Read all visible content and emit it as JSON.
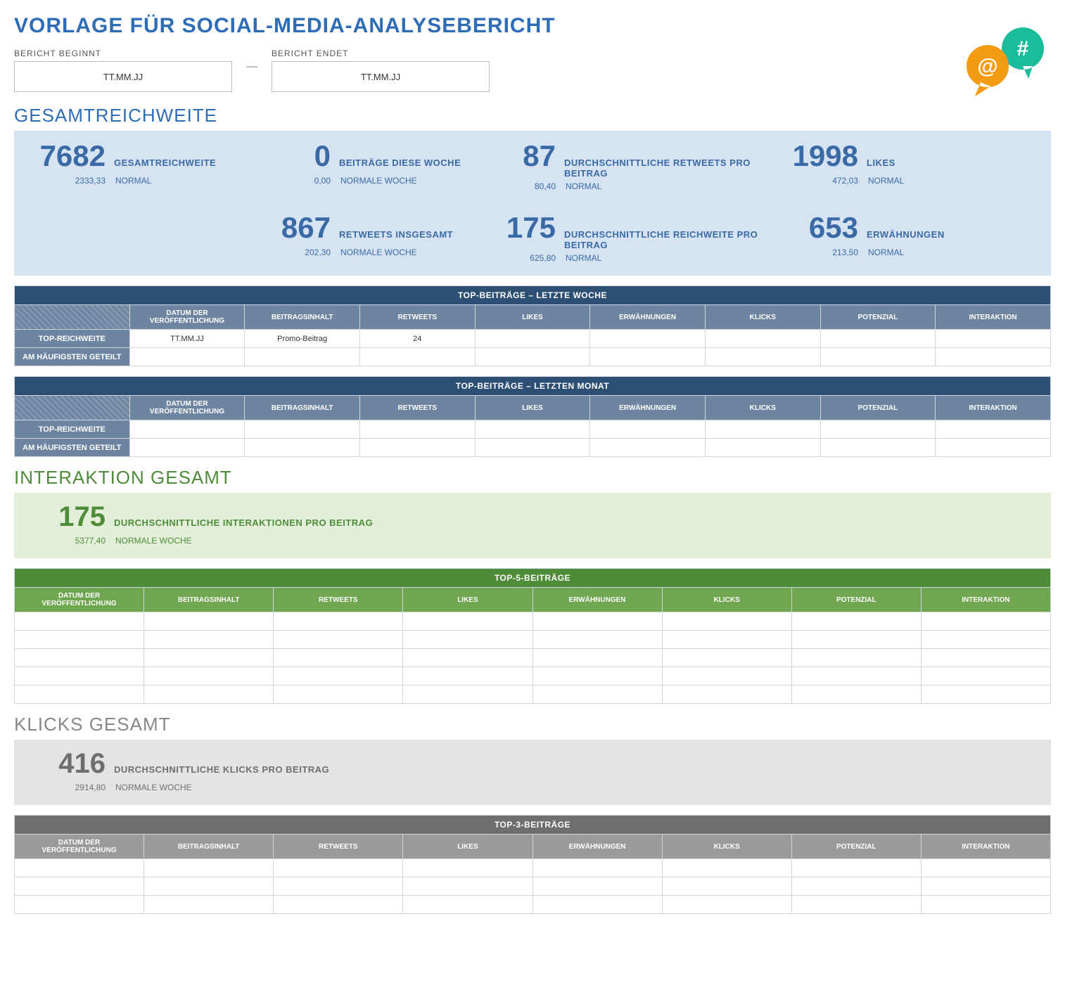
{
  "title": "VORLAGE FÜR SOCIAL-MEDIA-ANALYSEBERICHT",
  "dates": {
    "start_label": "BERICHT BEGINNT",
    "end_label": "BERICHT ENDET",
    "start_value": "TT.MM.JJ",
    "end_value": "TT.MM.JJ",
    "dash": "—"
  },
  "icons": {
    "at_color": "#f39c12",
    "hash_color": "#1abc9c",
    "at_glyph": "@",
    "hash_glyph": "#"
  },
  "reach_section": {
    "heading": "GESAMTREICHWEITE",
    "panel_bg": "#d6e3f2",
    "text_color": "#3a6aa6",
    "stats": [
      {
        "value": "7682",
        "label": "GESAMTREICHWEITE",
        "small": "2333,33",
        "status": "NORMAL"
      },
      {
        "value": "0",
        "label": "BEITRÄGE DIESE WOCHE",
        "small": "0,00",
        "status": "NORMALE WOCHE"
      },
      {
        "value": "87",
        "label": "DURCHSCHNITTLICHE RETWEETS PRO BEITRAG",
        "small": "80,40",
        "status": "NORMAL"
      },
      {
        "value": "1998",
        "label": "LIKES",
        "small": "472,03",
        "status": "NORMAL"
      },
      {
        "value": "",
        "label": "",
        "small": "",
        "status": ""
      },
      {
        "value": "867",
        "label": "RETWEETS INSGESAMT",
        "small": "202,30",
        "status": "NORMALE WOCHE"
      },
      {
        "value": "175",
        "label": "DURCHSCHNITTLICHE REICHWEITE PRO BEITRAG",
        "small": "625,80",
        "status": "NORMAL"
      },
      {
        "value": "653",
        "label": "ERWÄHNUNGEN",
        "small": "213,50",
        "status": "NORMAL"
      }
    ]
  },
  "top_week": {
    "title": "TOP-BEITRÄGE – LETZTE WOCHE",
    "headers": [
      "",
      "DATUM DER VERÖFFENTLICHUNG",
      "BEITRAGSINHALT",
      "RETWEETS",
      "LIKES",
      "ERWÄHNUNGEN",
      "KLICKS",
      "POTENZIAL",
      "INTERAKTION"
    ],
    "rows": [
      {
        "label": "TOP-REICHWEITE",
        "cells": [
          "TT.MM.JJ",
          "Promo-Beitrag",
          "24",
          "",
          "",
          "",
          "",
          ""
        ]
      },
      {
        "label": "AM HÄUFIGSTEN GETEILT",
        "cells": [
          "",
          "",
          "",
          "",
          "",
          "",
          "",
          ""
        ]
      }
    ]
  },
  "top_month": {
    "title": "TOP-BEITRÄGE – LETZTEN MONAT",
    "headers": [
      "",
      "DATUM DER VERÖFFENTLICHUNG",
      "BEITRAGSINHALT",
      "RETWEETS",
      "LIKES",
      "ERWÄHNUNGEN",
      "KLICKS",
      "POTENZIAL",
      "INTERAKTION"
    ],
    "rows": [
      {
        "label": "TOP-REICHWEITE",
        "cells": [
          "",
          "",
          "",
          "",
          "",
          "",
          "",
          ""
        ]
      },
      {
        "label": "AM HÄUFIGSTEN GETEILT",
        "cells": [
          "",
          "",
          "",
          "",
          "",
          "",
          "",
          ""
        ]
      }
    ]
  },
  "interaction_section": {
    "heading": "INTERAKTION GESAMT",
    "panel_bg": "#e3efd8",
    "text_color": "#4e8c3a",
    "stat": {
      "value": "175",
      "label": "DURCHSCHNITTLICHE INTERAKTIONEN PRO BEITRAG",
      "small": "5377,40",
      "status": "NORMALE WOCHE"
    }
  },
  "top5": {
    "title": "TOP-5-BEITRÄGE",
    "headers": [
      "DATUM DER VERÖFFENTLICHUNG",
      "BEITRAGSINHALT",
      "RETWEETS",
      "LIKES",
      "ERWÄHNUNGEN",
      "KLICKS",
      "POTENZIAL",
      "INTERAKTION"
    ],
    "row_count": 5
  },
  "clicks_section": {
    "heading": "KLICKS GESAMT",
    "panel_bg": "#e4e4e4",
    "text_color": "#6e6e6e",
    "stat": {
      "value": "416",
      "label": "DURCHSCHNITTLICHE KLICKS PRO BEITRAG",
      "small": "2914,80",
      "status": "NORMALE WOCHE"
    }
  },
  "top3": {
    "title": "TOP-3-BEITRÄGE",
    "headers": [
      "DATUM DER VERÖFFENTLICHUNG",
      "BEITRAGSINHALT",
      "RETWEETS",
      "LIKES",
      "ERWÄHNUNGEN",
      "KLICKS",
      "POTENZIAL",
      "INTERAKTION"
    ],
    "row_count": 3
  }
}
